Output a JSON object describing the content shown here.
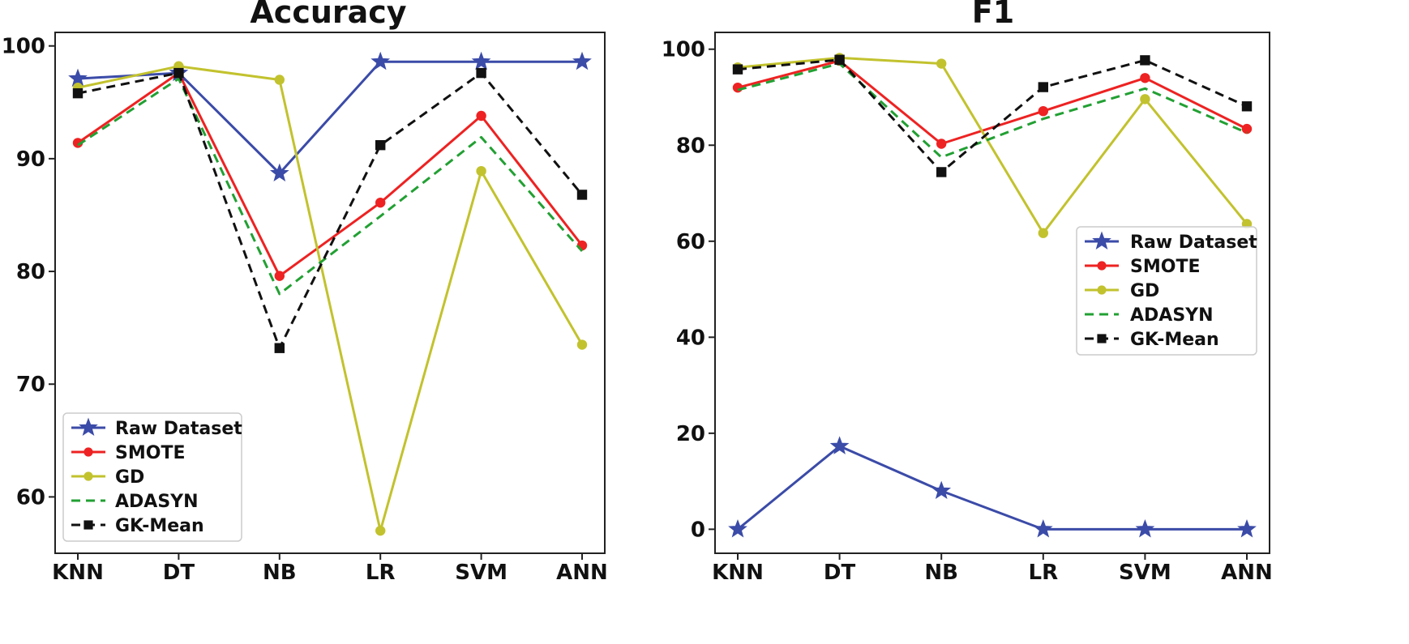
{
  "chart_data": [
    {
      "type": "line",
      "title": "Accuracy",
      "xlabel": "",
      "ylabel": "",
      "categories": [
        "KNN",
        "DT",
        "NB",
        "LR",
        "SVM",
        "ANN"
      ],
      "ylim": [
        55,
        101.2
      ],
      "yticks": [
        60,
        70,
        80,
        90,
        100
      ],
      "legend": "lower-left",
      "series": [
        {
          "name": "Raw Dataset",
          "color": "#3b4ba8",
          "dash": "solid",
          "marker": "star",
          "values": [
            97.1,
            97.6,
            88.7,
            98.6,
            98.6,
            98.6
          ]
        },
        {
          "name": "SMOTE",
          "color": "#ee2222",
          "dash": "solid",
          "marker": "circle",
          "values": [
            91.4,
            97.6,
            79.6,
            86.1,
            93.8,
            82.3
          ]
        },
        {
          "name": "GD",
          "color": "#c2c22e",
          "dash": "solid",
          "marker": "circle",
          "values": [
            96.3,
            98.2,
            97.0,
            57.0,
            88.9,
            73.5
          ]
        },
        {
          "name": "ADASYN",
          "color": "#22a033",
          "dash": "dashed",
          "marker": "none",
          "values": [
            91.2,
            97.1,
            78.0,
            84.9,
            91.9,
            81.8
          ]
        },
        {
          "name": "GK-Mean",
          "color": "#111111",
          "dash": "dashed",
          "marker": "square",
          "values": [
            95.8,
            97.6,
            73.2,
            91.2,
            97.6,
            86.8
          ]
        }
      ]
    },
    {
      "type": "line",
      "title": "F1",
      "xlabel": "",
      "ylabel": "",
      "categories": [
        "KNN",
        "DT",
        "NB",
        "LR",
        "SVM",
        "ANN"
      ],
      "ylim": [
        -5,
        103.5
      ],
      "yticks": [
        0,
        20,
        40,
        60,
        80,
        100
      ],
      "legend": "center-right",
      "series": [
        {
          "name": "Raw Dataset",
          "color": "#3b4ba8",
          "dash": "solid",
          "marker": "star",
          "values": [
            0,
            17.3,
            8.0,
            0,
            0,
            0
          ]
        },
        {
          "name": "SMOTE",
          "color": "#ee2222",
          "dash": "solid",
          "marker": "circle",
          "values": [
            92.0,
            97.6,
            80.3,
            87.1,
            94.0,
            83.4
          ]
        },
        {
          "name": "GD",
          "color": "#c2c22e",
          "dash": "solid",
          "marker": "circle",
          "values": [
            96.2,
            98.2,
            97.0,
            61.7,
            89.6,
            63.6
          ]
        },
        {
          "name": "ADASYN",
          "color": "#22a033",
          "dash": "dashed",
          "marker": "none",
          "values": [
            91.5,
            97.0,
            77.5,
            85.5,
            91.8,
            82.6
          ]
        },
        {
          "name": "GK-Mean",
          "color": "#111111",
          "dash": "dashed",
          "marker": "square",
          "values": [
            95.8,
            97.8,
            74.4,
            92.1,
            97.7,
            88.1
          ]
        }
      ]
    }
  ]
}
